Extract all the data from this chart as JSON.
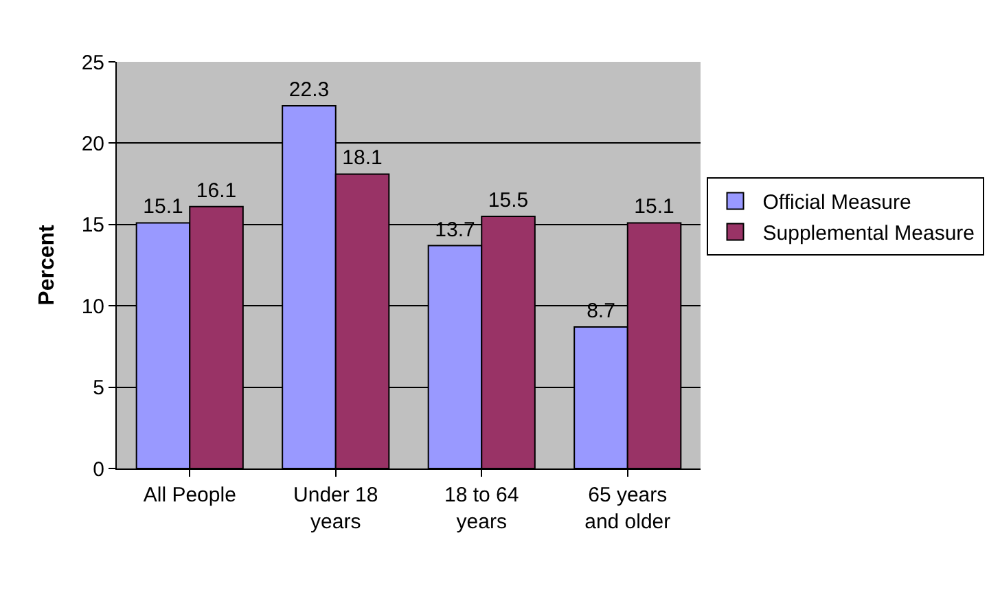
{
  "chart_data": {
    "type": "bar",
    "ylabel": "Percent",
    "categories": [
      "All People",
      "Under 18 years",
      "18 to 64 years",
      "65 years and older"
    ],
    "series": [
      {
        "name": "Official Measure",
        "color": "#9999ff",
        "values": [
          15.1,
          22.3,
          13.7,
          8.7
        ]
      },
      {
        "name": "Supplemental Measure",
        "color": "#993366",
        "values": [
          16.1,
          18.1,
          15.5,
          15.1
        ]
      }
    ],
    "ylim": [
      0,
      25
    ],
    "yticks": [
      0,
      5,
      10,
      15,
      20,
      25
    ],
    "grid": "y",
    "legend": "right",
    "data_labels": true
  }
}
